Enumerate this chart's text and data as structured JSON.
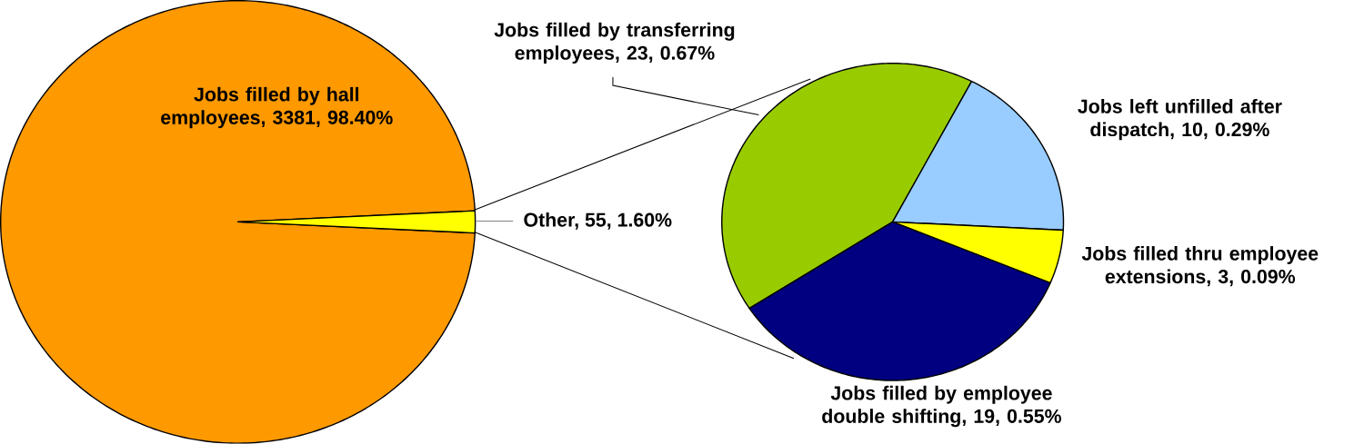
{
  "chart_data": [
    {
      "type": "pie",
      "categories": [
        "Jobs filled by hall employees, 3381, 98.40%",
        "Other, 55, 1.60%"
      ],
      "values": [
        3381,
        55
      ],
      "colors": [
        "#ff9900",
        "#ffff00"
      ]
    },
    {
      "type": "pie",
      "categories": [
        "Jobs filled by transferring employees, 23, 0.67%",
        "Jobs left unfilled after dispatch, 10, 0.29%",
        "Jobs filled thru employee extensions, 3, 0.09%",
        "Jobs filled by employee double shifting, 19, 0.55%"
      ],
      "values": [
        23,
        10,
        3,
        19
      ],
      "colors": [
        "#99cc00",
        "#99ccff",
        "#ffff00",
        "#000080"
      ]
    }
  ]
}
